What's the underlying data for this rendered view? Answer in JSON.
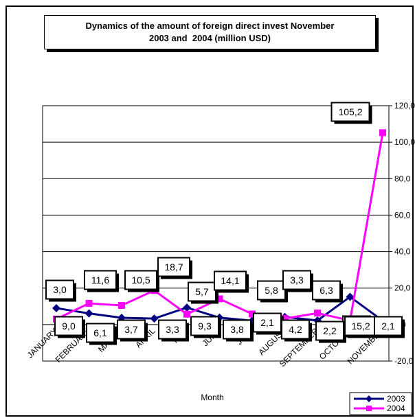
{
  "chart_data": {
    "type": "line",
    "title_lines": [
      "Dynamics of the amount of foreign direct invest November",
      "2003 and  2004 (million USD)"
    ],
    "xlabel": "Month",
    "ylabel": "",
    "categories": [
      "JANUARY",
      "FEBRUARY",
      "MARCH",
      "APRIL",
      "MAY",
      "JUNE",
      "JULY",
      "AUGUST",
      "SEPTEMBER",
      "OCTOBER",
      "NOVEMBER"
    ],
    "ylim": [
      -20,
      120
    ],
    "yticks": [
      -20,
      0,
      20,
      40,
      60,
      80,
      100,
      120
    ],
    "ytick_labels": [
      "-20,0",
      "0,0",
      "20,0",
      "40,0",
      "60,0",
      "80,0",
      "100,0",
      "120,0"
    ],
    "grid": true,
    "legend_position": "bottom-right",
    "series": [
      {
        "name": "2003",
        "color": "#000080",
        "marker": "diamond",
        "values": [
          9.0,
          6.1,
          3.7,
          3.3,
          9.3,
          3.8,
          2.1,
          4.2,
          2.2,
          15.2,
          2.1
        ],
        "labels": [
          "9,0",
          "6,1",
          "3,7",
          "3,3",
          "9,3",
          "3,8",
          "2,1",
          "4,2",
          "2,2",
          "15,2",
          "2,1"
        ]
      },
      {
        "name": "2004",
        "color": "#FF00FF",
        "marker": "square",
        "values": [
          3.0,
          11.6,
          10.5,
          18.7,
          5.7,
          14.1,
          5.8,
          3.3,
          6.3,
          2.2,
          105.2
        ],
        "labels": [
          "3,0",
          "11,6",
          "10,5",
          "18,7",
          "5,7",
          "14,1",
          "5,8",
          "3,3",
          "6,3",
          "2,2",
          "105,2"
        ]
      }
    ]
  }
}
